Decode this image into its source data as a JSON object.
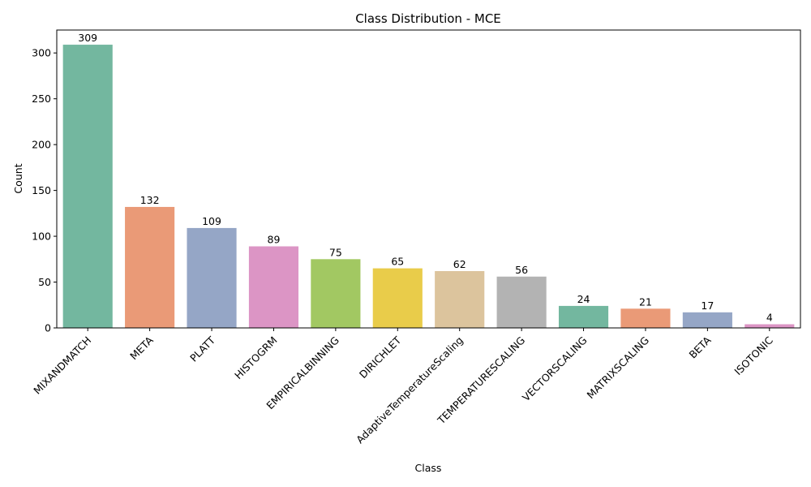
{
  "chart_data": {
    "type": "bar",
    "title": "Class Distribution - MCE",
    "xlabel": "Class",
    "ylabel": "Count",
    "ylim": [
      0,
      325
    ],
    "yticks": [
      0,
      50,
      100,
      150,
      200,
      250,
      300
    ],
    "grid": false,
    "legend": "none",
    "categories": [
      "MIXANDMATCH",
      "META",
      "PLATT",
      "HISTOGRM",
      "EMPIRICALBINNING",
      "DIRICHLET",
      "AdaptiveTemperatureScaling",
      "TEMPERATURESCALING",
      "VECTORSCALING",
      "MATRIXSCALING",
      "BETA",
      "ISOTONIC"
    ],
    "values": [
      309,
      132,
      109,
      89,
      75,
      65,
      62,
      56,
      24,
      21,
      17,
      4
    ],
    "colors": [
      "#73b79f",
      "#ea9a77",
      "#95a6c6",
      "#dc95c5",
      "#a2c862",
      "#e9cc4a",
      "#dcc49d",
      "#b3b3b3",
      "#73b79f",
      "#ea9a77",
      "#95a6c6",
      "#dc95c5"
    ]
  }
}
